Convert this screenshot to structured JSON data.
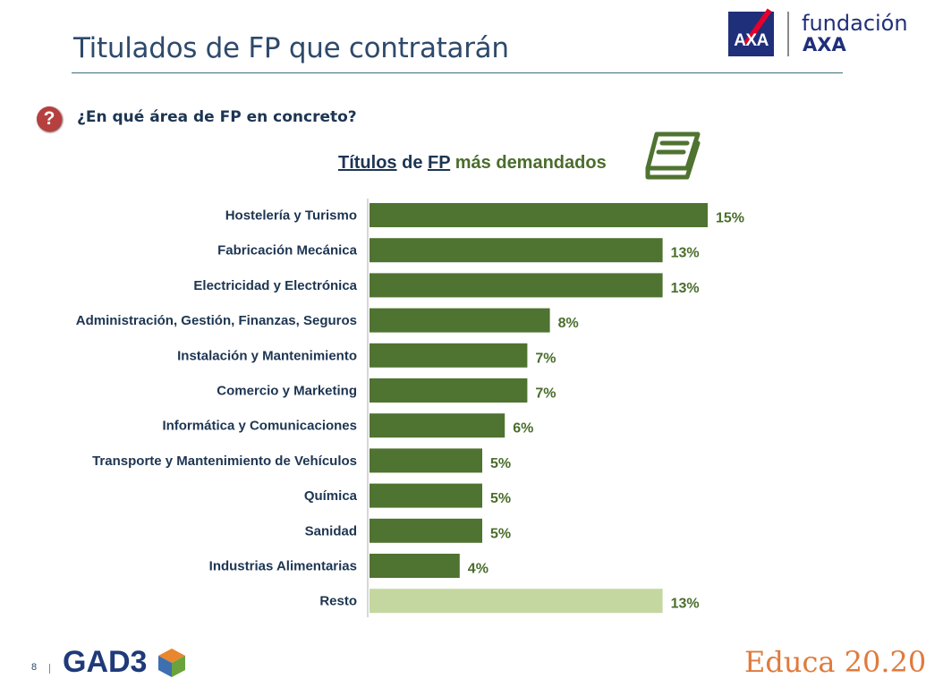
{
  "slide": {
    "title": "Titulados de FP que contratarán",
    "question": "¿En qué área de FP en concreto?",
    "question_icon": "question-mark-icon",
    "page_number": "8"
  },
  "branding": {
    "axa_logo_text": "AXA",
    "fundacion_line1": "fundación",
    "fundacion_line2": "AXA",
    "gad3_logo_text": "GAD3",
    "educa_logo_text": "Educa 20.20",
    "colors": {
      "axa_blue": "#1f2f7a",
      "axa_red": "#e4002b",
      "educa_orange": "#e07a3c"
    }
  },
  "chart_data": {
    "type": "bar",
    "orientation": "horizontal",
    "title_parts": {
      "underlined_1": "Títulos",
      "space": " de ",
      "underlined_2": "FP",
      "rest": " más demandados"
    },
    "title": "Títulos de FP más demandados",
    "title_icon": "book-icon",
    "categories": [
      "Hostelería y Turismo",
      "Fabricación Mecánica",
      "Electricidad y Electrónica",
      "Administración, Gestión, Finanzas, Seguros",
      "Instalación y Mantenimiento",
      "Comercio y Marketing",
      "Informática y Comunicaciones",
      "Transporte y Mantenimiento de Vehículos",
      "Química",
      "Sanidad",
      "Industrias Alimentarias",
      "Resto"
    ],
    "values": [
      15,
      13,
      13,
      8,
      7,
      7,
      6,
      5,
      5,
      5,
      4,
      13
    ],
    "value_labels": [
      "15%",
      "13%",
      "13%",
      "8%",
      "7%",
      "7%",
      "6%",
      "5%",
      "5%",
      "5%",
      "4%",
      "13%"
    ],
    "bar_colors": [
      "#4f7330",
      "#4f7330",
      "#4f7330",
      "#4f7330",
      "#4f7330",
      "#4f7330",
      "#4f7330",
      "#4f7330",
      "#4f7330",
      "#4f7330",
      "#4f7330",
      "#c4d7a0"
    ],
    "unit": "%",
    "grid": false,
    "legend": "none"
  }
}
